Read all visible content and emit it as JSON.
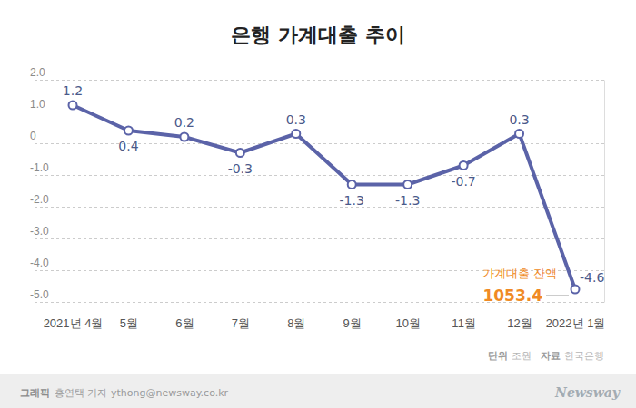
{
  "chart_data": {
    "type": "line",
    "title": "은행 가계대출 추이",
    "categories": [
      "2021년 4월",
      "5월",
      "6월",
      "7월",
      "8월",
      "9월",
      "10월",
      "11월",
      "12월",
      "2022년 1월"
    ],
    "values": [
      1.2,
      0.4,
      0.2,
      -0.3,
      0.3,
      -1.3,
      -1.3,
      -0.7,
      0.3,
      -4.6
    ],
    "color": "#5b63a8",
    "marker": "circle",
    "line_style": "solid",
    "ylim": [
      -5,
      2
    ],
    "yticks": [
      {
        "value": -5,
        "label": "-5.0"
      },
      {
        "value": -4,
        "label": "-4.0"
      },
      {
        "value": -3,
        "label": "-3.0"
      },
      {
        "value": -2,
        "label": "-2.0"
      },
      {
        "value": -1,
        "label": "-1.0"
      },
      0,
      {
        "value": 1,
        "label": "1.0"
      },
      {
        "value": 2,
        "label": "2.0"
      }
    ],
    "grid": true,
    "data_labels": true,
    "annotations": [
      {
        "text": "가계대출 잔액"
      },
      {
        "text": "1053.4"
      }
    ],
    "unit_label": "단위",
    "unit": "조원",
    "source_label": "자료",
    "source": "한국은행",
    "credit_label": "그래픽",
    "credit": "홍연택 기자 ythong@newsway.co.kr",
    "brand": "Newsway"
  }
}
